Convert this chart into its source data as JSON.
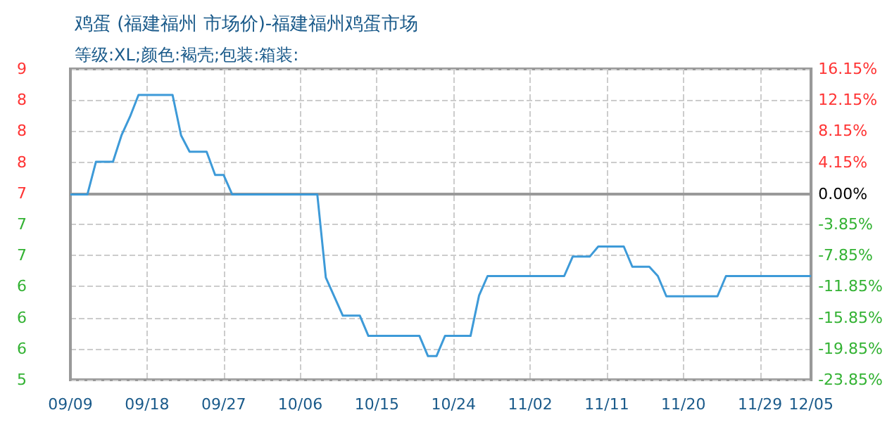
{
  "chart_data": {
    "type": "line",
    "title": "鸡蛋 (福建福州 市场价)-福建福州鸡蛋市场",
    "subtitle": "等级:XL;颜色:褐壳;包装:箱装:",
    "x": [
      "--09-09",
      "--09-11",
      "--09-12",
      "--09-14",
      "--09-15",
      "--09-16",
      "--09-17",
      "--09-21",
      "--09-22",
      "--09-23",
      "--09-25",
      "--09-26",
      "--09-27",
      "--09-28",
      "--10-08",
      "--10-09",
      "--10-11",
      "--10-13",
      "--10-14",
      "--10-20",
      "--10-21",
      "--10-22",
      "--10-23",
      "--10-26",
      "--10-27",
      "--10-28",
      "--11-06",
      "--11-07",
      "--11-09",
      "--11-10",
      "--11-13",
      "--11-14",
      "--11-16",
      "--11-17",
      "--11-18",
      "--11-24",
      "--11-25",
      "--12-05"
    ],
    "series": [
      {
        "color": "#3d9ad8",
        "values": [
          0,
          0,
          4.2,
          4.2,
          7.6,
          10,
          12.8,
          12.8,
          7.6,
          5.5,
          5.5,
          2.5,
          2.5,
          0,
          0,
          -10.7,
          -15.6,
          -15.6,
          -18.2,
          -18.2,
          -20.8,
          -20.8,
          -18.2,
          -18.2,
          -13,
          -10.5,
          -10.5,
          -8,
          -8,
          -6.7,
          -6.7,
          -9.3,
          -9.3,
          -10.5,
          -13.1,
          -13.1,
          -10.5,
          -10.5
        ]
      }
    ],
    "xlim": [
      "--09-09",
      "--12-05"
    ],
    "xticks": [
      {
        "value": "--09-09",
        "label": "09/09"
      },
      {
        "value": "--09-18",
        "label": "09/18"
      },
      {
        "value": "--09-27",
        "label": "09/27"
      },
      {
        "value": "--10-06",
        "label": "10/06"
      },
      {
        "value": "--10-15",
        "label": "10/15"
      },
      {
        "value": "--10-24",
        "label": "10/24"
      },
      {
        "value": "--11-02",
        "label": "11/02"
      },
      {
        "value": "--11-11",
        "label": "11/11"
      },
      {
        "value": "--11-20",
        "label": "11/20"
      },
      {
        "value": "--11-29",
        "label": "11/29"
      },
      {
        "value": "--12-05",
        "label": "12/05"
      }
    ],
    "ylim": [
      -23.85,
      16.15
    ],
    "yticks": [
      {
        "value": -23.85,
        "label": "-23.85%"
      },
      {
        "value": -19.85,
        "label": "-19.85%"
      },
      {
        "value": -15.85,
        "label": "-15.85%"
      },
      {
        "value": -11.85,
        "label": "-11.85%"
      },
      {
        "value": -7.85,
        "label": "-7.85%"
      },
      {
        "value": -3.85,
        "label": "-3.85%"
      },
      {
        "value": 0,
        "label": "0.00%"
      },
      {
        "value": 4.15,
        "label": "4.15%"
      },
      {
        "value": 8.15,
        "label": "8.15%"
      },
      {
        "value": 12.15,
        "label": "12.15%"
      },
      {
        "value": 16.15,
        "label": "16.15%"
      }
    ],
    "y2lim": [
      5.2,
      8.7
    ],
    "y2ticks": [
      {
        "value": 5.2,
        "label": "5"
      },
      {
        "value": 5.55,
        "label": "6"
      },
      {
        "value": 5.9,
        "label": "6"
      },
      {
        "value": 6.25,
        "label": "6"
      },
      {
        "value": 6.6,
        "label": "7"
      },
      {
        "value": 6.95,
        "label": "7"
      },
      {
        "value": 7.3,
        "label": "7"
      },
      {
        "value": 7.65,
        "label": "8"
      },
      {
        "value": 8.0,
        "label": "8"
      },
      {
        "value": 8.35,
        "label": "8"
      },
      {
        "value": 8.7,
        "label": "9"
      }
    ],
    "grid": true
  }
}
